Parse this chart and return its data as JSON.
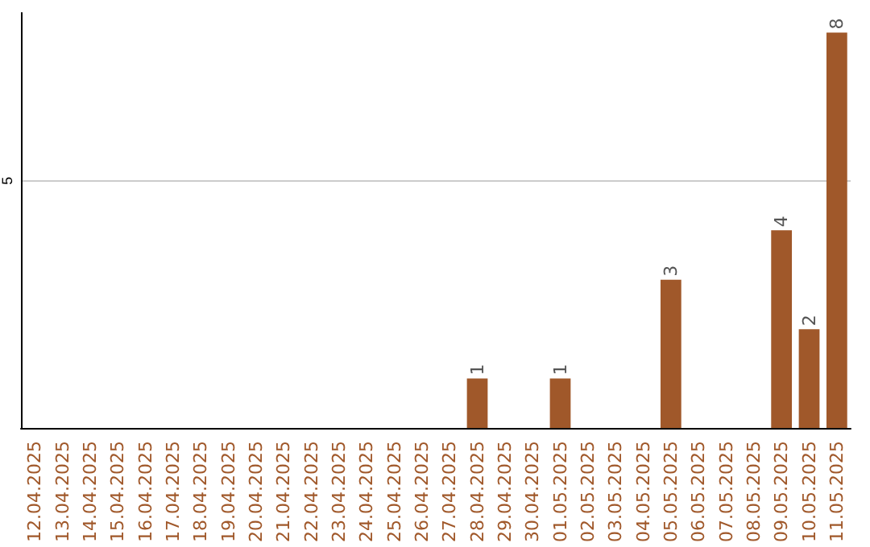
{
  "chart_data": {
    "type": "bar",
    "categories": [
      "12.04.2025",
      "13.04.2025",
      "14.04.2025",
      "15.04.2025",
      "16.04.2025",
      "17.04.2025",
      "18.04.2025",
      "19.04.2025",
      "20.04.2025",
      "21.04.2025",
      "22.04.2025",
      "23.04.2025",
      "24.04.2025",
      "25.04.2025",
      "26.04.2025",
      "27.04.2025",
      "28.04.2025",
      "29.04.2025",
      "30.04.2025",
      "01.05.2025",
      "02.05.2025",
      "03.05.2025",
      "04.05.2025",
      "05.05.2025",
      "06.05.2025",
      "07.05.2025",
      "08.05.2025",
      "09.05.2025",
      "10.05.2025",
      "11.05.2025"
    ],
    "values": [
      null,
      null,
      null,
      null,
      null,
      null,
      null,
      null,
      null,
      null,
      null,
      null,
      null,
      null,
      null,
      null,
      1,
      null,
      null,
      1,
      null,
      null,
      null,
      3,
      null,
      null,
      null,
      4,
      2,
      8
    ],
    "data_labels": true,
    "color": "#a0582a",
    "ylim": [
      0,
      8.4
    ],
    "yticks": [
      {
        "value": 0,
        "label": null
      },
      5
    ],
    "grid": "y"
  }
}
